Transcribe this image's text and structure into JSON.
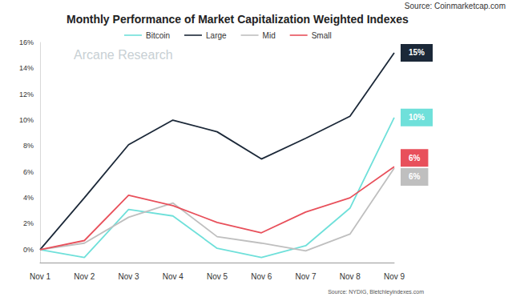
{
  "chart_data": {
    "type": "line",
    "title": "Monthly Performance of Market Capitalization Weighted Indexes",
    "annotations": [
      "Source: Coinmarketcap.com",
      "Arcane Research",
      "Source: NYDIG, Bletchleyindexes.com"
    ],
    "categories": [
      "Nov 1",
      "Nov 2",
      "Nov 3",
      "Nov 4",
      "Nov 5",
      "Nov 6",
      "Nov 7",
      "Nov 8",
      "Nov 9"
    ],
    "series": [
      {
        "name": "Bitcoin",
        "color": "#6fe0da",
        "values": [
          0,
          -0.6,
          3.1,
          2.6,
          0.1,
          -0.6,
          0.3,
          3.2,
          10.2
        ],
        "end_label": "10%"
      },
      {
        "name": "Large",
        "color": "#1b2838",
        "values": [
          0,
          4.0,
          8.1,
          10.0,
          9.1,
          7.0,
          8.6,
          10.3,
          15.2
        ],
        "end_label": "15%"
      },
      {
        "name": "Mid",
        "color": "#bfbfbf",
        "values": [
          0,
          0.5,
          2.5,
          3.6,
          1.0,
          0.5,
          -0.1,
          1.2,
          6.3
        ],
        "end_label": "6%"
      },
      {
        "name": "Small",
        "color": "#e8505b",
        "values": [
          0,
          0.7,
          4.2,
          3.4,
          2.1,
          1.3,
          2.9,
          4.0,
          6.4
        ],
        "end_label": "6%"
      }
    ],
    "ylim": [
      -1,
      16
    ],
    "yticks": [
      {
        "value": 0,
        "label": "0%"
      },
      {
        "value": 2,
        "label": "2%"
      },
      {
        "value": 4,
        "label": "4%"
      },
      {
        "value": 6,
        "label": "6%"
      },
      {
        "value": 8,
        "label": "8%"
      },
      {
        "value": 10,
        "label": "10%"
      },
      {
        "value": 12,
        "label": "12%"
      },
      {
        "value": 14,
        "label": "14%"
      },
      {
        "value": 16,
        "label": "16%"
      }
    ],
    "grid": false,
    "legend": "top"
  }
}
